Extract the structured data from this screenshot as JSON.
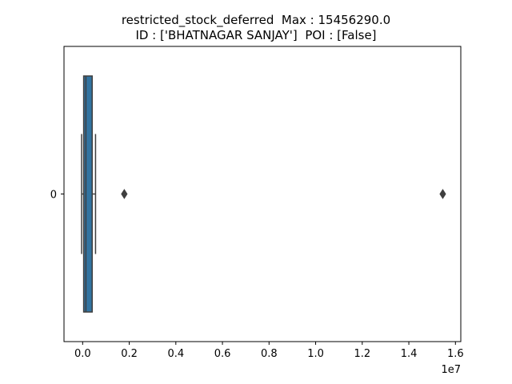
{
  "chart_data": {
    "type": "boxplot",
    "orientation": "horizontal",
    "title": {
      "line1": "restricted_stock_deferred  Max : 15456290.0",
      "line2": "ID : ['BHATNAGAR SANJAY']  POI : [False]"
    },
    "xlabel": "",
    "ylabel": "",
    "x_offset_label": "1e7",
    "x_scale_factor": 10000000,
    "xlim": [
      -800000,
      16230000
    ],
    "x_ticks": [
      0,
      2000000,
      4000000,
      6000000,
      8000000,
      10000000,
      12000000,
      14000000,
      16000000
    ],
    "x_tick_labels": [
      "0.0",
      "0.2",
      "0.4",
      "0.6",
      "0.8",
      "1.0",
      "1.2",
      "1.4",
      "1.6"
    ],
    "categories": [
      "0"
    ],
    "box": {
      "whisker_low": -44093,
      "q1": 44093,
      "median": 140264,
      "q3": 410000,
      "whisker_high": 554000,
      "fliers": [
        1787380,
        15456290
      ]
    },
    "colors": {
      "box_fill": "#3274a1",
      "lines": "#3f3f3f",
      "axes": "#000000"
    }
  }
}
